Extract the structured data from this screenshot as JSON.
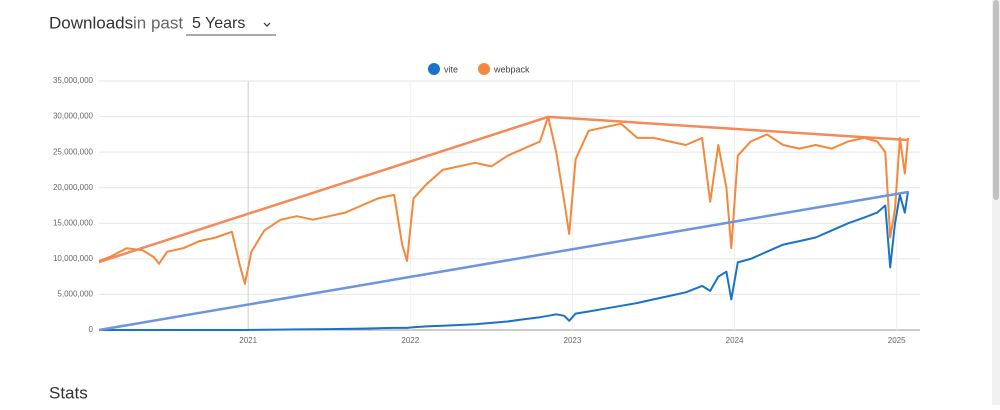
{
  "header": {
    "title": "Downloads",
    "range_label": "in past",
    "range_value": "5 Years"
  },
  "section_title": "Stats",
  "chart_data": {
    "type": "line",
    "x": [
      2020.08,
      2020.15,
      2020.25,
      2020.35,
      2020.42,
      2020.45,
      2020.5,
      2020.6,
      2020.7,
      2020.8,
      2020.9,
      2020.95,
      2020.98,
      2021.02,
      2021.1,
      2021.2,
      2021.3,
      2021.4,
      2021.5,
      2021.6,
      2021.7,
      2021.8,
      2021.9,
      2021.95,
      2021.98,
      2022.02,
      2022.1,
      2022.2,
      2022.3,
      2022.4,
      2022.5,
      2022.6,
      2022.7,
      2022.8,
      2022.85,
      2022.9,
      2022.95,
      2022.98,
      2023.02,
      2023.1,
      2023.2,
      2023.3,
      2023.4,
      2023.5,
      2023.6,
      2023.7,
      2023.8,
      2023.85,
      2023.9,
      2023.95,
      2023.98,
      2024.02,
      2024.1,
      2024.2,
      2024.3,
      2024.4,
      2024.5,
      2024.6,
      2024.7,
      2024.8,
      2024.88,
      2024.93,
      2024.96,
      2024.99,
      2025.02,
      2025.05,
      2025.07
    ],
    "series": [
      {
        "name": "vite",
        "color": "#1a73c8",
        "values": [
          0,
          0,
          0,
          0,
          0,
          0,
          0,
          0,
          0,
          0,
          0,
          0,
          0,
          20000,
          30000,
          50000,
          80000,
          100000,
          120000,
          150000,
          200000,
          250000,
          300000,
          300000,
          300000,
          400000,
          500000,
          600000,
          700000,
          800000,
          1000000,
          1200000,
          1500000,
          1800000,
          2000000,
          2200000,
          2000000,
          1300000,
          2300000,
          2600000,
          3000000,
          3400000,
          3800000,
          4300000,
          4800000,
          5300000,
          6200000,
          5500000,
          7500000,
          8200000,
          4300000,
          9500000,
          10000000,
          11000000,
          12000000,
          12500000,
          13000000,
          14000000,
          15000000,
          15800000,
          16500000,
          17500000,
          8800000,
          15000000,
          19000000,
          16500000,
          19500000
        ]
      },
      {
        "name": "webpack",
        "color": "#f4883c",
        "values": [
          9700000,
          10300000,
          11500000,
          11200000,
          10200000,
          9300000,
          11000000,
          11500000,
          12500000,
          13000000,
          13800000,
          9000000,
          6500000,
          11000000,
          14000000,
          15500000,
          16000000,
          15500000,
          16000000,
          16500000,
          17500000,
          18500000,
          19000000,
          12000000,
          9700000,
          18500000,
          20500000,
          22500000,
          23000000,
          23500000,
          23000000,
          24500000,
          25500000,
          26500000,
          30000000,
          25000000,
          18000000,
          13500000,
          24000000,
          28000000,
          28500000,
          29000000,
          27000000,
          27000000,
          26500000,
          26000000,
          27000000,
          18000000,
          26000000,
          20000000,
          11500000,
          24500000,
          26500000,
          27500000,
          26000000,
          25500000,
          26000000,
          25500000,
          26500000,
          27000000,
          26500000,
          25000000,
          13000000,
          17000000,
          27000000,
          22000000,
          27000000
        ]
      }
    ],
    "trend_lines": [
      {
        "color": "#f4895a",
        "x": [
          2020.08,
          2022.85,
          2025.07
        ],
        "values": [
          9560000,
          29960000,
          26700000
        ]
      },
      {
        "color": "#6d94dd",
        "x": [
          2020.08,
          2025.07
        ],
        "values": [
          0,
          19400000
        ]
      }
    ],
    "xlim": [
      2020.08,
      2025.07
    ],
    "xticks": [
      2021,
      2022,
      2023,
      2024,
      2025
    ],
    "ylim": [
      0,
      35000000
    ],
    "yticks": [
      0,
      {
        "value": 5000000,
        "label": "5,000,000"
      },
      {
        "value": 10000000,
        "label": "10,000,000"
      },
      {
        "value": 15000000,
        "label": "15,000,000"
      },
      {
        "value": 20000000,
        "label": "20,000,000"
      },
      {
        "value": 25000000,
        "label": "25,000,000"
      },
      {
        "value": 30000000,
        "label": "30,000,000"
      },
      {
        "value": 35000000,
        "label": "35,000,000"
      }
    ],
    "grid": true
  }
}
